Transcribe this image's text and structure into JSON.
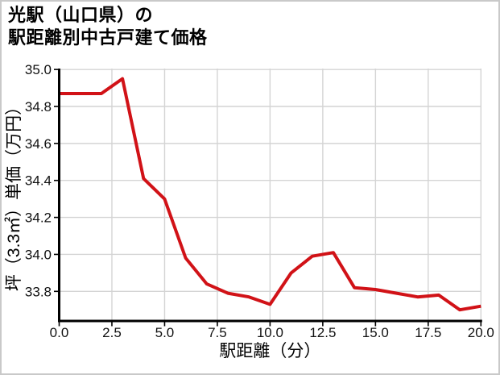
{
  "header": {
    "title_line1": "光駅（山口県）の",
    "title_line2": "駅距離別中古戸建て価格"
  },
  "colors": {
    "line": "#d11217",
    "grid": "#d4d4d4",
    "spine": "#000000",
    "tick": "#000000",
    "tick_label": "#111111",
    "frame_border": "#c9c9c9",
    "background": "#ffffff"
  },
  "chart_data": {
    "type": "line",
    "title": "光駅（山口県）の駅距離別中古戸建て価格",
    "xlabel": "駅距離（分）",
    "ylabel": "坪（3.3㎡）単価（万円）",
    "x": [
      0,
      1,
      2,
      3,
      4,
      5,
      6,
      7,
      8,
      9,
      10,
      11,
      12,
      13,
      14,
      15,
      16,
      17,
      18,
      19,
      20
    ],
    "values": [
      34.87,
      34.87,
      34.87,
      34.95,
      34.41,
      34.3,
      33.98,
      33.84,
      33.79,
      33.77,
      33.73,
      33.9,
      33.99,
      34.01,
      33.82,
      33.81,
      33.79,
      33.77,
      33.78,
      33.7,
      33.72
    ],
    "xlim": [
      0,
      20
    ],
    "ylim": [
      33.64,
      35.005
    ],
    "x_tick_labels": [
      "0.0",
      "2.5",
      "5.0",
      "7.5",
      "10.0",
      "12.5",
      "15.0",
      "17.5",
      "20.0"
    ],
    "y_tick_labels": [
      "33.8",
      "34.0",
      "34.2",
      "34.4",
      "34.6",
      "34.8",
      "35.0"
    ],
    "grid": true,
    "legend": false
  }
}
